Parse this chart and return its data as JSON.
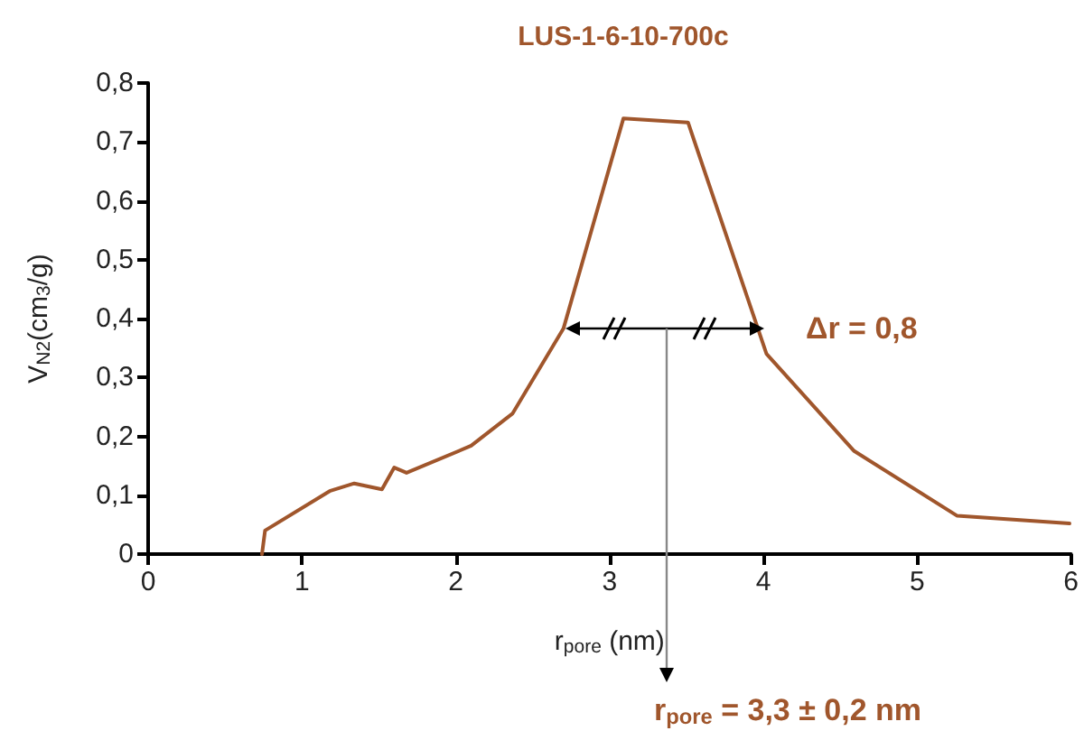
{
  "chart_data": {
    "type": "line",
    "title": "LUS-1-6-10-700c",
    "xlabel": "r$_{pore}$ (nm)",
    "ylabel": "V$_{N2}$(cm$_{3}$/g)",
    "x": [
      0.74,
      0.76,
      1.18,
      1.34,
      1.52,
      1.6,
      1.68,
      2.1,
      2.37,
      2.7,
      3.09,
      3.51,
      4.02,
      4.59,
      5.26,
      5.99
    ],
    "series": [
      {
        "color": "#a0562c",
        "values": [
          0,
          0.04,
          0.107,
          0.12,
          0.11,
          0.147,
          0.138,
          0.184,
          0.239,
          0.383,
          0.74,
          0.733,
          0.34,
          0.175,
          0.065,
          0.052
        ]
      }
    ],
    "xlim": [
      0,
      6
    ],
    "xticks": [
      0,
      1,
      2,
      3,
      4,
      5,
      6
    ],
    "ylim": [
      0,
      0.8
    ],
    "yticks": [
      0,
      {
        "value": 0.1,
        "label": "0,1"
      },
      {
        "value": 0.2,
        "label": "0,2"
      },
      {
        "value": 0.3,
        "label": "0,3"
      },
      {
        "value": 0.4,
        "label": "0,4"
      },
      {
        "value": 0.5,
        "label": "0,5"
      },
      {
        "value": 0.6,
        "label": "0,6"
      },
      {
        "value": 0.7,
        "label": "0,7"
      },
      {
        "value": 0.8,
        "label": "0,8"
      }
    ],
    "annotations": [
      "Δr = 0,8",
      "r$_{pore}$ = 3,3 ± 0,2 nm"
    ],
    "grid": false,
    "marker": "none",
    "line_style": "solid"
  }
}
